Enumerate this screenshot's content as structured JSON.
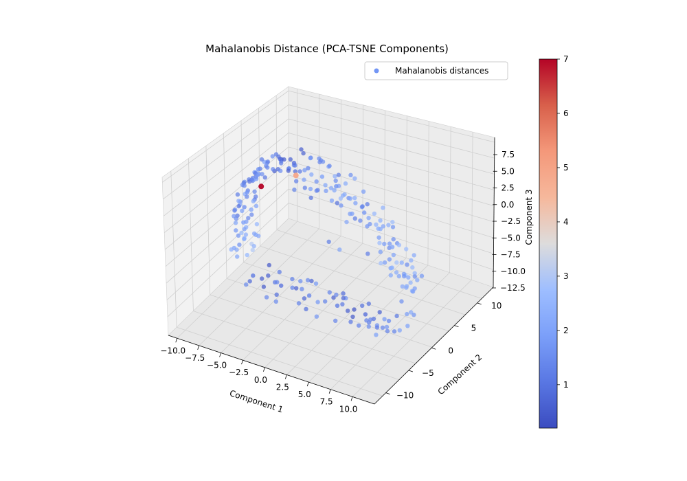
{
  "chart_data": {
    "type": "scatter",
    "projection": "3d",
    "title": "Mahalanobis Distance (PCA-TSNE Components)",
    "xlabel": "Component 1",
    "ylabel": "Component 2",
    "zlabel": "Component 3",
    "xlim": [
      -11,
      11
    ],
    "ylim": [
      -14,
      14
    ],
    "zlim": [
      -13,
      9.5
    ],
    "xticks": [
      "−10.0",
      "−7.5",
      "−5.0",
      "−2.5",
      "0.0",
      "2.5",
      "5.0",
      "7.5",
      "10.0"
    ],
    "yticks": [
      "−10",
      "−5",
      "0",
      "5",
      "10"
    ],
    "zticks": [
      "7.5",
      "5.0",
      "2.5",
      "0.0",
      "−2.5",
      "−5.0",
      "−7.5",
      "−10.0",
      "−12.5"
    ],
    "legend": {
      "label": "Mahalanobis distances",
      "location": "upper right",
      "marker_color": "#7396f5"
    },
    "colorbar": {
      "cmap": "coolwarm",
      "min": 0.2,
      "max": 7.0,
      "ticks": [
        "1",
        "2",
        "3",
        "4",
        "5",
        "6",
        "7"
      ]
    },
    "grid": true,
    "series": [
      {
        "name": "Mahalanobis distances",
        "description": "U-shaped point cloud; values estimated from the plot (x, y, z in component units, d = Mahalanobis distance)",
        "points": [
          {
            "x": -5.5,
            "y": 0,
            "z": 8.6,
            "d": 0.8
          },
          {
            "x": -4,
            "y": 0,
            "z": 8.7,
            "d": 0.9
          },
          {
            "x": -2.5,
            "y": 0,
            "z": 8.6,
            "d": 1.4
          },
          {
            "x": -1,
            "y": 0,
            "z": 8.0,
            "d": 1.9
          },
          {
            "x": 0.5,
            "y": 0,
            "z": 7.2,
            "d": 1.6
          },
          {
            "x": 2,
            "y": 0,
            "z": 6.0,
            "d": 2.1
          },
          {
            "x": 3.5,
            "y": 0,
            "z": 4.5,
            "d": 1.7
          },
          {
            "x": 5,
            "y": 0,
            "z": 2.7,
            "d": 2.3
          },
          {
            "x": 6.5,
            "y": 0,
            "z": 0.5,
            "d": 2.0
          },
          {
            "x": 7.5,
            "y": 0,
            "z": -1.5,
            "d": 2.4
          },
          {
            "x": 8.2,
            "y": 0,
            "z": -3.5,
            "d": 2.2
          },
          {
            "x": 8.7,
            "y": 0,
            "z": -5.5,
            "d": 1.9
          },
          {
            "x": -6.8,
            "y": 0,
            "z": 7.5,
            "d": 1.2
          },
          {
            "x": -7.8,
            "y": 0,
            "z": 5.8,
            "d": 1.6
          },
          {
            "x": -8.5,
            "y": 0,
            "z": 3.8,
            "d": 1.3
          },
          {
            "x": -9.0,
            "y": 0,
            "z": 1.5,
            "d": 1.7
          },
          {
            "x": -9.3,
            "y": 0,
            "z": -1.0,
            "d": 1.5
          },
          {
            "x": -9.4,
            "y": 0,
            "z": -3.5,
            "d": 1.9
          },
          {
            "x": -9.3,
            "y": 0,
            "z": -6.0,
            "d": 2.3
          },
          {
            "x": -9.0,
            "y": 0,
            "z": -8.5,
            "d": 2.6
          },
          {
            "x": -3.8,
            "y": 0,
            "z": 6.8,
            "d": 4.9
          },
          {
            "x": -7.5,
            "y": 0,
            "z": 3.2,
            "d": 7.0
          },
          {
            "x": -7,
            "y": -3,
            "z": -8.8,
            "d": 1.0
          },
          {
            "x": -4,
            "y": -3,
            "z": -8.9,
            "d": 0.9
          },
          {
            "x": -1,
            "y": -3,
            "z": -9.0,
            "d": 1.3
          },
          {
            "x": 2,
            "y": -3,
            "z": -9.1,
            "d": 1.1
          },
          {
            "x": 5,
            "y": -3,
            "z": -9.0,
            "d": 0.8
          },
          {
            "x": 7.5,
            "y": -3,
            "z": -8.8,
            "d": 1.5
          },
          {
            "x": 9.5,
            "y": -3,
            "z": -8.6,
            "d": 2.1
          }
        ]
      }
    ]
  }
}
